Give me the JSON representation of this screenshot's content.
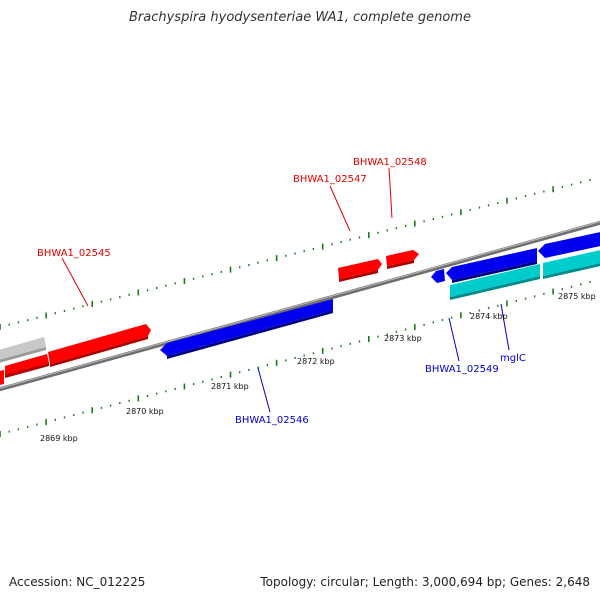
{
  "title": "Brachyspira hyodysenteriae WA1, complete genome",
  "footer": {
    "accession": "Accession: NC_012225",
    "summary": "Topology: circular; Length: 3,000,694 bp; Genes: 2,648"
  },
  "colors": {
    "forward_gene": "#ff0000",
    "reverse_gene": "#0000ee",
    "rna_gene": "#00cccc",
    "other_gene": "#c8c8c8",
    "backbone": "#777777",
    "tick": "#1a7a1a"
  },
  "ticks": {
    "major_labels": [
      "2869 kbp",
      "2870 kbp",
      "2871 kbp",
      "2872 kbp",
      "2873 kbp",
      "2874 kbp",
      "2875 kbp"
    ]
  },
  "gene_labels": {
    "fwd": [
      "BHWA1_02545",
      "BHWA1_02547",
      "BHWA1_02548"
    ],
    "rev": [
      "BHWA1_02546",
      "BHWA1_02549",
      "mglC"
    ]
  }
}
